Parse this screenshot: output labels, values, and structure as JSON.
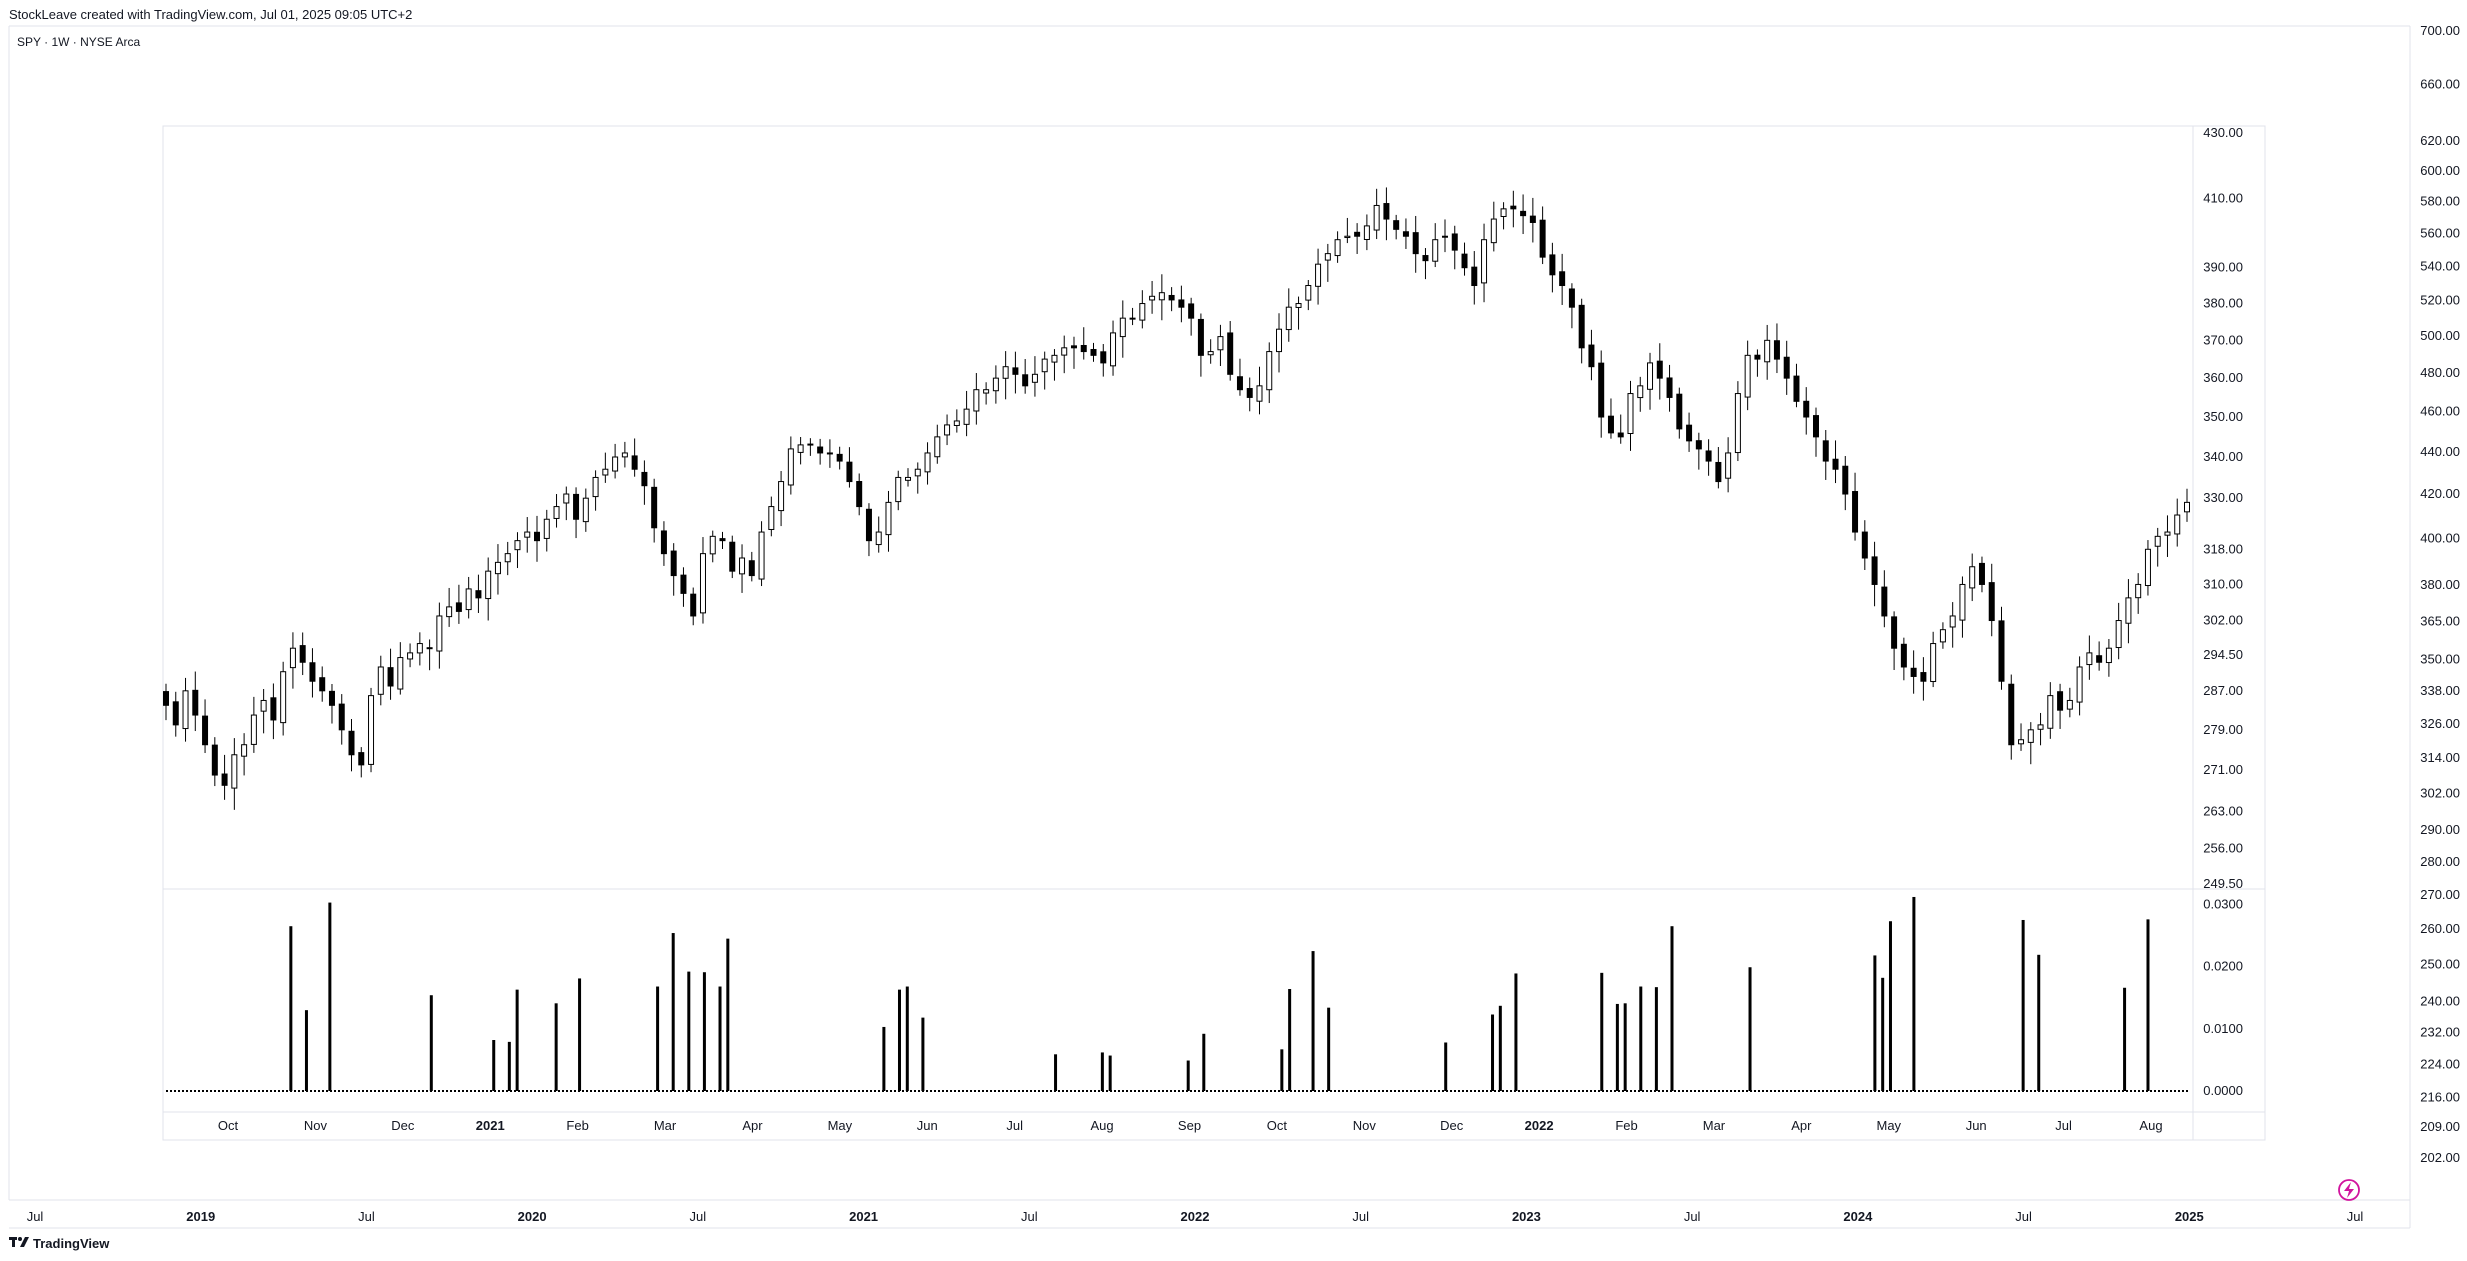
{
  "header": {
    "caption": "StockLeave created with TradingView.com, Jul 01, 2025 09:05 UTC+2"
  },
  "symbol_label": "SPY · 1W · NYSE Arca",
  "footer": {
    "brand": "TradingView"
  },
  "colors": {
    "candle": "#000000",
    "grid_border": "#e0e3eb",
    "background": "#ffffff",
    "accent_icon": "#d1149e"
  },
  "chart_data": [
    {
      "type": "candlestick",
      "title": "",
      "ylim": [
        195,
        700
      ],
      "scale": "log",
      "right_axis_ticks": [
        "700.00",
        "660.00",
        "620.00",
        "600.00",
        "580.00",
        "560.00",
        "540.00",
        "520.00",
        "500.00",
        "480.00",
        "460.00",
        "440.00",
        "420.00",
        "400.00",
        "380.00",
        "365.00",
        "350.00",
        "338.00",
        "326.00",
        "314.00",
        "302.00",
        "290.00",
        "280.00",
        "270.00",
        "260.00",
        "250.00",
        "240.00",
        "232.00",
        "224.00",
        "216.00",
        "209.00",
        "202.00"
      ],
      "x_ticks": [
        {
          "label": "Jul",
          "bold": false
        },
        {
          "label": "2019",
          "bold": true
        },
        {
          "label": "Jul",
          "bold": false
        },
        {
          "label": "2020",
          "bold": true
        },
        {
          "label": "Jul",
          "bold": false
        },
        {
          "label": "2021",
          "bold": true
        },
        {
          "label": "Jul",
          "bold": false
        },
        {
          "label": "2022",
          "bold": true
        },
        {
          "label": "Jul",
          "bold": false
        },
        {
          "label": "2023",
          "bold": true
        },
        {
          "label": "Jul",
          "bold": false
        },
        {
          "label": "2024",
          "bold": true
        },
        {
          "label": "Jul",
          "bold": false
        },
        {
          "label": "2025",
          "bold": true
        },
        {
          "label": "Jul",
          "bold": false
        }
      ]
    },
    {
      "type": "candlestick",
      "title": "",
      "ylim": [
        249.5,
        430
      ],
      "scale": "log",
      "y_ticks": [
        "430.00",
        "410.00",
        "390.00",
        "380.00",
        "370.00",
        "360.00",
        "350.00",
        "340.00",
        "330.00",
        "318.00",
        "310.00",
        "302.00",
        "294.50",
        "287.00",
        "279.00",
        "271.00",
        "263.00",
        "256.00",
        "249.50"
      ],
      "x_ticks": [
        {
          "label": "Oct",
          "bold": false
        },
        {
          "label": "Nov",
          "bold": false
        },
        {
          "label": "Dec",
          "bold": false
        },
        {
          "label": "2021",
          "bold": true
        },
        {
          "label": "Feb",
          "bold": false
        },
        {
          "label": "Mar",
          "bold": false
        },
        {
          "label": "Apr",
          "bold": false
        },
        {
          "label": "May",
          "bold": false
        },
        {
          "label": "Jun",
          "bold": false
        },
        {
          "label": "Jul",
          "bold": false
        },
        {
          "label": "Aug",
          "bold": false
        },
        {
          "label": "Sep",
          "bold": false
        },
        {
          "label": "Oct",
          "bold": false
        },
        {
          "label": "Nov",
          "bold": false
        },
        {
          "label": "Dec",
          "bold": false
        },
        {
          "label": "2022",
          "bold": true
        },
        {
          "label": "Feb",
          "bold": false
        },
        {
          "label": "Mar",
          "bold": false
        },
        {
          "label": "Apr",
          "bold": false
        },
        {
          "label": "May",
          "bold": false
        },
        {
          "label": "Jun",
          "bold": false
        },
        {
          "label": "Jul",
          "bold": false
        },
        {
          "label": "Aug",
          "bold": false
        }
      ],
      "series": [
        {
          "close": [
            284,
            280,
            287,
            282,
            276,
            270,
            268,
            274,
            276,
            282,
            285,
            281,
            291,
            296,
            293,
            289,
            287,
            284,
            279,
            274,
            272,
            286,
            292,
            288,
            294,
            295,
            297,
            296,
            303,
            305,
            304,
            309,
            307,
            313,
            315,
            317,
            320,
            322,
            320,
            325,
            328,
            331,
            325,
            330,
            335,
            337,
            340,
            341,
            337,
            333,
            323,
            317,
            312,
            308,
            303,
            317,
            321,
            320,
            313,
            316,
            312,
            322,
            328,
            334,
            342,
            343,
            343,
            341,
            341,
            339,
            334,
            328,
            320,
            322,
            329,
            335,
            335,
            337,
            341,
            345,
            348,
            349,
            352,
            357,
            357,
            360,
            363,
            361,
            358,
            361,
            365,
            366,
            368,
            368,
            367,
            366,
            364,
            372,
            376,
            376,
            380,
            382,
            383,
            381,
            379,
            376,
            366,
            367,
            371,
            361,
            357,
            355,
            358,
            367,
            373,
            379,
            380,
            385,
            391,
            394,
            398,
            399,
            399,
            402,
            408,
            404,
            401,
            399,
            394,
            392,
            398,
            399,
            395,
            390,
            385,
            398,
            404,
            407,
            407,
            405,
            403,
            393,
            388,
            385,
            379,
            368,
            363,
            350,
            346,
            345,
            356,
            358,
            364,
            360,
            355,
            347,
            344,
            342,
            339,
            334,
            341,
            356,
            366,
            365,
            370,
            365,
            360,
            354,
            350,
            345,
            339,
            337,
            331,
            322,
            316,
            310,
            303,
            296,
            292,
            290,
            289,
            297,
            300,
            303,
            310,
            314,
            310,
            302,
            289,
            276,
            277,
            279,
            280,
            286,
            283,
            285,
            292,
            295,
            293,
            296,
            302,
            307,
            310,
            318,
            321,
            322,
            326,
            329
          ]
        }
      ]
    },
    {
      "type": "bar",
      "title": "",
      "ylim": [
        0,
        0.032
      ],
      "y_ticks": [
        "0.0300",
        "0.0200",
        "0.0100",
        "0.0000"
      ],
      "baseline": 0.0,
      "values": [
        0,
        0,
        0,
        0,
        0,
        0,
        0,
        0,
        0,
        0,
        0,
        0,
        0,
        0,
        0,
        0,
        0.0265,
        0,
        0.013,
        0,
        0,
        0.0303,
        0,
        0,
        0,
        0,
        0,
        0,
        0,
        0,
        0,
        0,
        0,
        0,
        0.0154,
        0,
        0,
        0,
        0,
        0,
        0,
        0,
        0.0082,
        0,
        0.0079,
        0.0163,
        0,
        0,
        0,
        0,
        0.0141,
        0,
        0,
        0.0181,
        0,
        0,
        0,
        0,
        0,
        0,
        0,
        0,
        0,
        0.0168,
        0,
        0.0254,
        0,
        0.0192,
        0,
        0.0191,
        0,
        0.0168,
        0.0245,
        0,
        0,
        0,
        0,
        0,
        0,
        0,
        0,
        0,
        0,
        0,
        0,
        0,
        0,
        0,
        0,
        0,
        0,
        0,
        0.0103,
        0,
        0.0163,
        0.0168,
        0,
        0.0118,
        0,
        0,
        0,
        0,
        0,
        0,
        0,
        0,
        0,
        0,
        0,
        0,
        0,
        0,
        0,
        0,
        0.0059,
        0,
        0,
        0,
        0,
        0,
        0.0062,
        0.0057,
        0,
        0,
        0,
        0,
        0,
        0,
        0,
        0,
        0,
        0.0049,
        0,
        0.0092,
        0,
        0,
        0,
        0,
        0,
        0,
        0,
        0,
        0,
        0.0067,
        0.0164,
        0,
        0,
        0.0225,
        0,
        0.0134,
        0,
        0,
        0,
        0,
        0,
        0,
        0,
        0,
        0,
        0,
        0,
        0,
        0,
        0,
        0.0078,
        0,
        0,
        0,
        0,
        0,
        0.0123,
        0.0137,
        0,
        0.0189,
        0,
        0,
        0,
        0,
        0,
        0,
        0,
        0,
        0,
        0,
        0.019,
        0,
        0.014,
        0.0141,
        0,
        0.0168,
        0,
        0.0167,
        0,
        0.0265,
        0,
        0,
        0,
        0,
        0,
        0,
        0,
        0,
        0,
        0.0199,
        0,
        0,
        0,
        0,
        0,
        0,
        0,
        0,
        0,
        0,
        0,
        0,
        0,
        0,
        0,
        0.0218,
        0.0182,
        0.0273,
        0,
        0,
        0.0312,
        0,
        0,
        0,
        0,
        0,
        0,
        0,
        0,
        0,
        0,
        0,
        0,
        0,
        0.0275,
        0,
        0.0219,
        0,
        0,
        0,
        0,
        0,
        0,
        0,
        0,
        0,
        0,
        0.0166,
        0,
        0,
        0.0276,
        0,
        0,
        0,
        0,
        0
      ]
    }
  ]
}
